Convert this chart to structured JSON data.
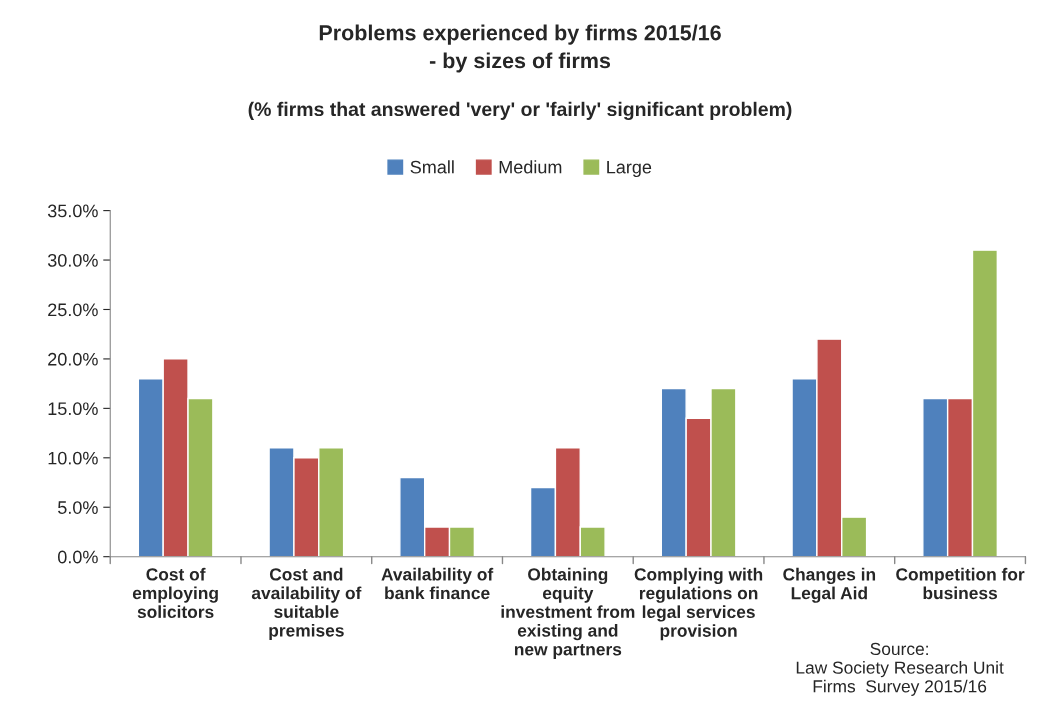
{
  "chart_data": {
    "type": "bar",
    "title": "Problems experienced by firms 2015/16\n- by sizes of firms",
    "subtitle": "(% firms that answered 'very' or 'fairly' significant problem)",
    "categories": [
      "Cost of employing solicitors",
      "Cost and availability of suitable premises",
      "Availability of bank finance",
      "Obtaining equity investment from existing and new partners",
      "Complying with regulations on legal services provision",
      "Changes in Legal Aid",
      "Competition for business"
    ],
    "series": [
      {
        "name": "Small",
        "color": "#4f81bd",
        "values": [
          18,
          11,
          8,
          7,
          17,
          18,
          16
        ]
      },
      {
        "name": "Medium",
        "color": "#c0504d",
        "values": [
          20,
          10,
          3,
          11,
          14,
          22,
          16
        ]
      },
      {
        "name": "Large",
        "color": "#9bbb59",
        "values": [
          16,
          11,
          3,
          3,
          17,
          4,
          31
        ]
      }
    ],
    "ylim": [
      0,
      35
    ],
    "yticks": [
      {
        "value": 0,
        "label": "0.0%"
      },
      {
        "value": 5,
        "label": "5.0%"
      },
      {
        "value": 10,
        "label": "10.0%"
      },
      {
        "value": 15,
        "label": "15.0%"
      },
      {
        "value": 20,
        "label": "20.0%"
      },
      {
        "value": 25,
        "label": "25.0%"
      },
      {
        "value": 30,
        "label": "30.0%"
      },
      {
        "value": 35,
        "label": "35.0%"
      }
    ],
    "grid": false,
    "legend": "top",
    "annotations": [
      "Source:\nLaw Society Research Unit\nFirms  Survey 2015/16"
    ]
  }
}
